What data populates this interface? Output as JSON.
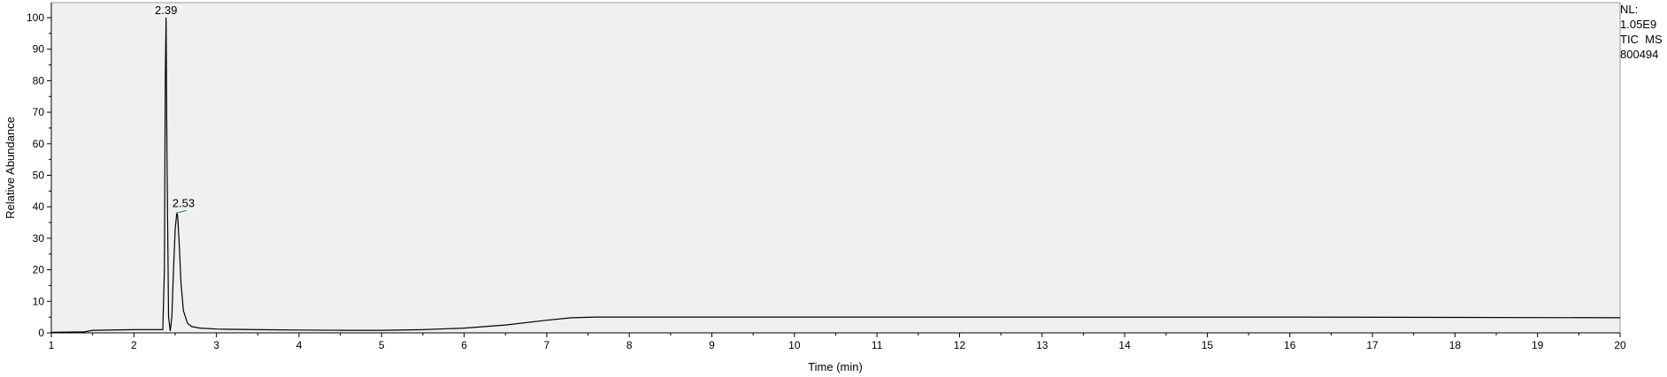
{
  "chart_data": {
    "type": "line",
    "title": "",
    "xlabel": "Time (min)",
    "ylabel": "Relative Abundance",
    "xlim": [
      1,
      20
    ],
    "ylim": [
      0,
      100
    ],
    "x_ticks": [
      1,
      2,
      3,
      4,
      5,
      6,
      7,
      8,
      9,
      10,
      11,
      12,
      13,
      14,
      15,
      16,
      17,
      18,
      19,
      20
    ],
    "y_ticks": [
      0,
      10,
      20,
      30,
      40,
      50,
      60,
      70,
      80,
      90,
      100
    ],
    "grid": false,
    "series": [
      {
        "x": [
          1.0,
          1.4,
          1.5,
          2.0,
          2.35,
          2.37,
          2.38,
          2.39,
          2.4,
          2.42,
          2.44,
          2.46,
          2.48,
          2.5,
          2.52,
          2.53,
          2.55,
          2.57,
          2.6,
          2.65,
          2.7,
          2.8,
          3.0,
          3.5,
          4.0,
          4.5,
          5.0,
          5.5,
          6.0,
          6.5,
          7.0,
          7.3,
          7.6,
          8.0,
          10.0,
          12.0,
          14.0,
          16.0,
          18.0,
          20.0
        ],
        "y": [
          0.2,
          0.3,
          0.8,
          1.0,
          1.0,
          20,
          80,
          100,
          60,
          5,
          0.6,
          5,
          20,
          33,
          38,
          37,
          28,
          16,
          7,
          3,
          2,
          1.5,
          1.2,
          1.0,
          0.9,
          0.8,
          0.8,
          1.0,
          1.5,
          2.5,
          4.0,
          4.8,
          5.0,
          5.0,
          5.0,
          5.0,
          5.0,
          5.0,
          4.9,
          4.8
        ]
      }
    ],
    "annotations": [
      {
        "text": "2.39",
        "x": 2.39,
        "y": 100
      },
      {
        "text": "2.53",
        "x": 2.53,
        "y": 38
      }
    ]
  },
  "nl_panel": {
    "line1": "NL:",
    "line2": "1.05E9",
    "line3": "TIC  MS",
    "line4": "800494"
  },
  "colors": {
    "plot_background": "#f0f0f0",
    "trace": "#000000",
    "label_marker": "#2e8b2e"
  }
}
